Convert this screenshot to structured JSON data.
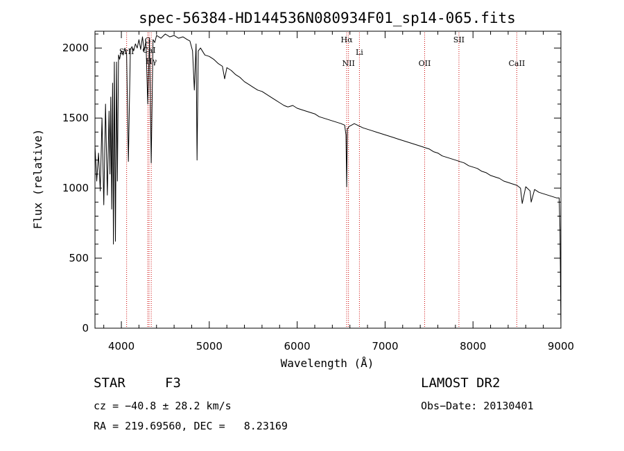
{
  "chart_data": {
    "type": "line",
    "title": "spec-56384-HD144536N080934F01_sp14-065.fits",
    "xlabel": "Wavelength (Å)",
    "ylabel": "Flux (relative)",
    "xlim": [
      3700,
      9000
    ],
    "ylim": [
      0,
      2120
    ],
    "xticks": [
      4000,
      5000,
      6000,
      7000,
      8000,
      9000
    ],
    "yticks": [
      0,
      500,
      1000,
      1500,
      2000
    ],
    "grid": false,
    "series": [
      {
        "name": "flux",
        "x": [
          3700,
          3720,
          3740,
          3760,
          3780,
          3800,
          3820,
          3840,
          3860,
          3870,
          3880,
          3890,
          3900,
          3910,
          3920,
          3933,
          3945,
          3955,
          3968,
          3980,
          4000,
          4020,
          4040,
          4060,
          4080,
          4102,
          4120,
          4140,
          4160,
          4180,
          4200,
          4220,
          4240,
          4260,
          4280,
          4300,
          4320,
          4340,
          4360,
          4380,
          4400,
          4450,
          4500,
          4550,
          4600,
          4650,
          4700,
          4750,
          4780,
          4810,
          4830,
          4850,
          4861,
          4875,
          4900,
          4950,
          5000,
          5050,
          5100,
          5150,
          5175,
          5200,
          5250,
          5300,
          5350,
          5400,
          5450,
          5500,
          5550,
          5600,
          5650,
          5700,
          5750,
          5800,
          5850,
          5890,
          5900,
          5950,
          6000,
          6050,
          6100,
          6150,
          6200,
          6250,
          6300,
          6350,
          6400,
          6450,
          6500,
          6520,
          6540,
          6555,
          6563,
          6570,
          6590,
          6620,
          6650,
          6700,
          6750,
          6800,
          6850,
          6900,
          6950,
          7000,
          7050,
          7100,
          7150,
          7200,
          7250,
          7300,
          7350,
          7400,
          7450,
          7500,
          7550,
          7600,
          7650,
          7700,
          7750,
          7800,
          7850,
          7900,
          7950,
          8000,
          8050,
          8100,
          8150,
          8200,
          8250,
          8300,
          8350,
          8400,
          8450,
          8500,
          8540,
          8560,
          8600,
          8650,
          8662,
          8700,
          8750,
          8800,
          8850,
          8900,
          8950,
          8980,
          8990,
          9000
        ],
        "values": [
          1300,
          1050,
          1250,
          980,
          1500,
          880,
          1600,
          950,
          1550,
          1100,
          1650,
          850,
          1750,
          600,
          1900,
          620,
          1900,
          1050,
          1950,
          1920,
          1980,
          1950,
          2000,
          1960,
          1190,
          1990,
          2010,
          1980,
          2030,
          2000,
          2060,
          1990,
          2080,
          1980,
          2050,
          1600,
          2070,
          1180,
          2060,
          2040,
          2090,
          2070,
          2100,
          2080,
          2090,
          2070,
          2080,
          2060,
          2050,
          1980,
          1700,
          2030,
          1200,
          1980,
          2000,
          1950,
          1940,
          1920,
          1890,
          1870,
          1780,
          1860,
          1840,
          1810,
          1790,
          1760,
          1740,
          1720,
          1700,
          1690,
          1670,
          1650,
          1630,
          1610,
          1590,
          1580,
          1580,
          1590,
          1570,
          1560,
          1550,
          1540,
          1530,
          1510,
          1500,
          1490,
          1480,
          1470,
          1460,
          1455,
          1450,
          1380,
          1010,
          1420,
          1440,
          1450,
          1460,
          1445,
          1430,
          1420,
          1410,
          1400,
          1390,
          1380,
          1370,
          1360,
          1350,
          1340,
          1330,
          1320,
          1310,
          1300,
          1290,
          1280,
          1260,
          1250,
          1230,
          1220,
          1210,
          1200,
          1190,
          1180,
          1160,
          1150,
          1140,
          1120,
          1110,
          1090,
          1080,
          1070,
          1050,
          1040,
          1030,
          1020,
          1000,
          890,
          1010,
          980,
          900,
          990,
          970,
          960,
          950,
          940,
          930,
          930,
          700,
          0
        ]
      }
    ],
    "reference_lines": [
      {
        "x": 4060,
        "label": "SrII"
      },
      {
        "x": 4300,
        "label": "G"
      },
      {
        "x": 4315,
        "label": "CaI"
      },
      {
        "x": 4340,
        "label": "Hγ"
      },
      {
        "x": 6563,
        "label": "Hα"
      },
      {
        "x": 6584,
        "label": "NII"
      },
      {
        "x": 6708,
        "label": "Li"
      },
      {
        "x": 7450,
        "label": "OII"
      },
      {
        "x": 7840,
        "label": "SII"
      },
      {
        "x": 8498,
        "label": "CaII"
      }
    ]
  },
  "info": {
    "object_type": "STAR",
    "spectral_class": "F3",
    "survey": "LAMOST DR2",
    "velocity": "cz = −40.8 ± 28.2 km/s",
    "obs_date": "Obs−Date: 20130401",
    "coords": "RA = 219.69560, DEC =   8.23169"
  },
  "colors": {
    "line": "#000000",
    "reference": "#cc0000",
    "background": "#ffffff"
  }
}
